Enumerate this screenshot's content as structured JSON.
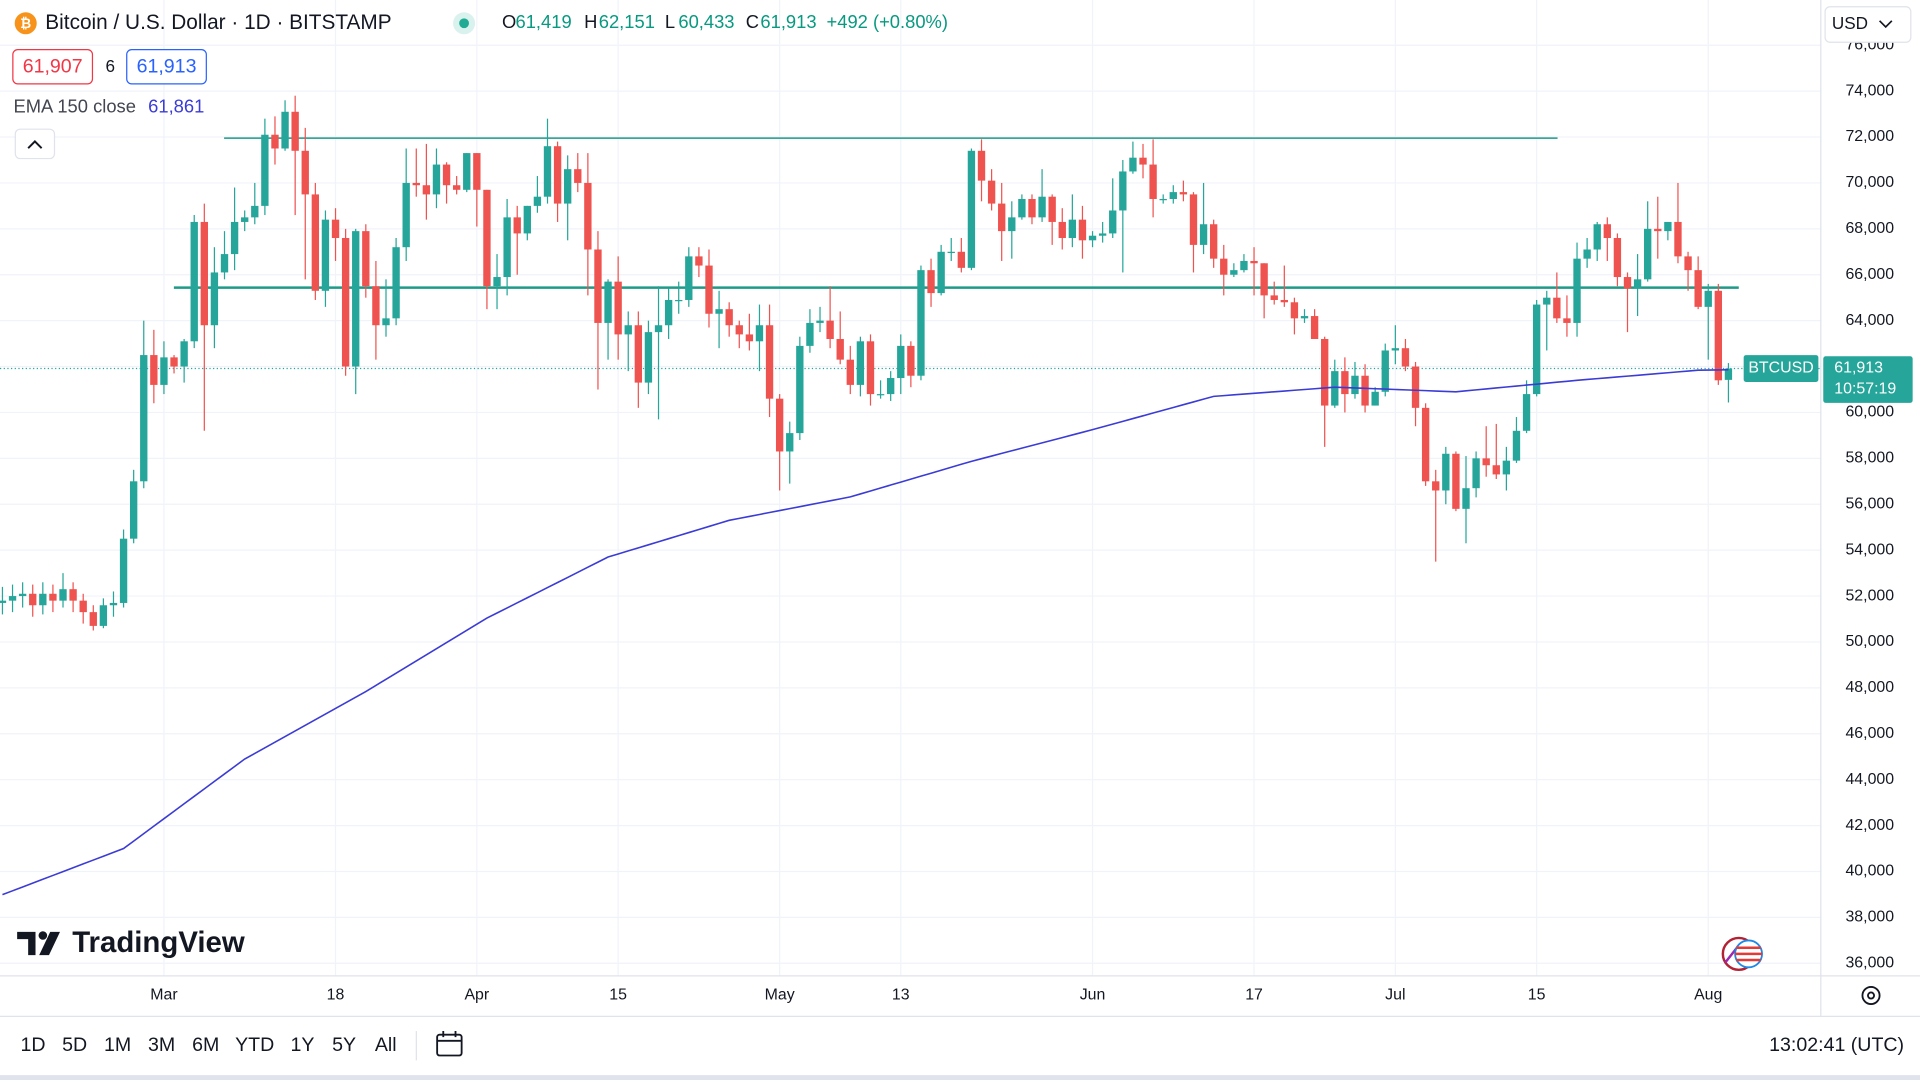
{
  "header": {
    "title": "Bitcoin / U.S. Dollar · 1D · BITSTAMP",
    "ohlc": [
      {
        "label": "O",
        "text": "61,419"
      },
      {
        "label": "H",
        "text": "62,151"
      },
      {
        "label": "L",
        "text": "60,433"
      },
      {
        "label": "C",
        "text": "61,913"
      }
    ],
    "change": "+492 (+0.80%)",
    "bid": "61,907",
    "spread": "6",
    "ask": "61,913",
    "currency": "USD"
  },
  "toolbar": {
    "ranges": [
      "1D",
      "5D",
      "1M",
      "3M",
      "6M",
      "YTD",
      "1Y",
      "5Y",
      "All"
    ],
    "clock": "13:02:41 (UTC)",
    "logo": "TradingView"
  },
  "chart_data": {
    "type": "candlestick",
    "categories": [
      null,
      null,
      null,
      null,
      null,
      null,
      null,
      null,
      null,
      null,
      null,
      null,
      null,
      null,
      null,
      null,
      "Mar",
      null,
      null,
      null,
      null,
      null,
      null,
      null,
      null,
      null,
      null,
      null,
      null,
      null,
      null,
      null,
      null,
      "18",
      null,
      null,
      null,
      null,
      null,
      null,
      null,
      null,
      null,
      null,
      null,
      null,
      null,
      "Apr",
      null,
      null,
      null,
      null,
      null,
      null,
      null,
      null,
      null,
      null,
      null,
      null,
      null,
      "15",
      null,
      null,
      null,
      null,
      null,
      null,
      null,
      null,
      null,
      null,
      null,
      null,
      null,
      null,
      null,
      "May",
      null,
      null,
      null,
      null,
      null,
      null,
      null,
      null,
      null,
      null,
      null,
      "13",
      null,
      null,
      null,
      null,
      null,
      null,
      null,
      null,
      null,
      null,
      null,
      null,
      null,
      null,
      null,
      null,
      null,
      null,
      "Jun",
      null,
      null,
      null,
      null,
      null,
      null,
      null,
      null,
      null,
      null,
      null,
      null,
      null,
      null,
      null,
      "17",
      null,
      null,
      null,
      null,
      null,
      null,
      null,
      null,
      null,
      null,
      null,
      null,
      null,
      "Jul",
      null,
      null,
      null,
      null,
      null,
      null,
      null,
      null,
      null,
      null,
      null,
      null,
      null,
      "15",
      null,
      null,
      null,
      null,
      null,
      null,
      null,
      null,
      null,
      null,
      null,
      null,
      null,
      null,
      null,
      null,
      "Aug",
      null,
      null
    ],
    "open": [
      51700,
      51800,
      52000,
      52100,
      51600,
      52100,
      51800,
      52300,
      51800,
      51300,
      50700,
      51600,
      51700,
      54500,
      57000,
      62500,
      61200,
      62400,
      62000,
      63100,
      68300,
      63800,
      66100,
      66900,
      68300,
      68500,
      69000,
      72100,
      71500,
      73100,
      71400,
      69500,
      65300,
      68400,
      67600,
      62000,
      67900,
      65500,
      63800,
      64100,
      67200,
      70000,
      69900,
      69500,
      70800,
      69900,
      69700,
      71300,
      69700,
      65500,
      65900,
      68500,
      67800,
      69000,
      69400,
      71600,
      69100,
      70600,
      70000,
      67100,
      63900,
      65700,
      63400,
      63800,
      61300,
      63500,
      63800,
      64900,
      64900,
      66800,
      66400,
      64300,
      64500,
      63800,
      63400,
      63100,
      63800,
      60600,
      58300,
      59100,
      62900,
      63900,
      64000,
      63200,
      62300,
      61200,
      63100,
      60800,
      60800,
      61500,
      62900,
      61600,
      66200,
      65200,
      67000,
      67000,
      66300,
      71400,
      70100,
      69100,
      67900,
      68500,
      69300,
      68500,
      69400,
      68300,
      67600,
      68400,
      67500,
      67700,
      67800,
      68800,
      70500,
      71100,
      70800,
      69300,
      69300,
      69600,
      69500,
      67300,
      68200,
      66700,
      66000,
      66200,
      66600,
      66500,
      65100,
      64900,
      64800,
      64100,
      64200,
      63200,
      60300,
      61800,
      60800,
      61600,
      60300,
      60900,
      62700,
      62800,
      62000,
      60200,
      57000,
      56600,
      58200,
      55800,
      56700,
      58000,
      57700,
      57300,
      57900,
      59200,
      60800,
      64700,
      65000,
      64100,
      63900,
      66700,
      67100,
      68200,
      67600,
      65900,
      65400,
      65800,
      68000,
      67900,
      68300,
      66800,
      66200,
      64600,
      65300,
      61419
    ],
    "high": [
      52400,
      52500,
      52600,
      52500,
      52600,
      52500,
      53000,
      52600,
      52100,
      51600,
      51900,
      52200,
      54900,
      57500,
      64000,
      63600,
      63100,
      62500,
      63200,
      68600,
      69100,
      67200,
      67900,
      69800,
      68800,
      70000,
      72800,
      72900,
      73600,
      73800,
      72400,
      70000,
      68800,
      68900,
      68000,
      68000,
      68200,
      66600,
      65800,
      67600,
      71500,
      71500,
      71700,
      71500,
      70900,
      70300,
      71300,
      71300,
      69700,
      66900,
      69300,
      69000,
      69000,
      70300,
      72800,
      71800,
      71200,
      71300,
      71300,
      67900,
      65800,
      66800,
      64400,
      64400,
      64000,
      65500,
      65400,
      65700,
      67200,
      67200,
      67100,
      65300,
      64800,
      64000,
      64300,
      64700,
      64700,
      60800,
      59600,
      63300,
      64500,
      64600,
      65500,
      64400,
      62900,
      63300,
      63400,
      61400,
      61800,
      63400,
      63100,
      66400,
      66700,
      67300,
      67600,
      67600,
      71500,
      71900,
      70600,
      70000,
      69200,
      69500,
      69500,
      70600,
      69500,
      68900,
      69500,
      69000,
      67900,
      68300,
      70200,
      71000,
      71800,
      71700,
      71900,
      69500,
      69900,
      70100,
      69600,
      70000,
      68400,
      67300,
      66500,
      66900,
      67200,
      66500,
      65700,
      66400,
      65000,
      64500,
      64500,
      63300,
      62300,
      62400,
      62200,
      62100,
      61100,
      63000,
      63800,
      63200,
      62200,
      60400,
      57500,
      58500,
      58300,
      58100,
      58300,
      59400,
      59500,
      58500,
      59800,
      61400,
      64900,
      65300,
      66100,
      65100,
      67400,
      67600,
      68300,
      68500,
      67800,
      66100,
      66900,
      69200,
      69400,
      68300,
      70000,
      67000,
      66800,
      65600,
      65600,
      62151
    ],
    "low": [
      51200,
      51300,
      51500,
      51100,
      51200,
      51300,
      51500,
      51300,
      50800,
      50500,
      50600,
      51100,
      51500,
      54300,
      56700,
      60400,
      60800,
      61700,
      61300,
      62800,
      59200,
      62800,
      65800,
      66200,
      67900,
      68200,
      68600,
      70800,
      71400,
      68600,
      65800,
      64900,
      64600,
      66600,
      61600,
      60800,
      65000,
      62300,
      63300,
      63800,
      66600,
      69400,
      68400,
      68900,
      69100,
      69500,
      69600,
      68100,
      64500,
      64500,
      65100,
      66000,
      67500,
      68700,
      69100,
      68300,
      67500,
      69600,
      65100,
      61000,
      62300,
      62300,
      61800,
      60200,
      60800,
      59700,
      63200,
      64300,
      64600,
      65900,
      63700,
      62800,
      63300,
      62800,
      62700,
      61800,
      59800,
      56600,
      56900,
      58800,
      62600,
      63500,
      62800,
      62100,
      60800,
      60700,
      60300,
      60600,
      60500,
      60800,
      61100,
      61400,
      64600,
      65100,
      66600,
      66100,
      66200,
      69200,
      68800,
      66600,
      66700,
      68400,
      68200,
      68300,
      67300,
      67100,
      67200,
      66700,
      67200,
      67400,
      67600,
      66100,
      70400,
      70200,
      68500,
      69100,
      69100,
      69200,
      66100,
      66900,
      66300,
      65100,
      65900,
      66100,
      65100,
      64100,
      64700,
      64600,
      63400,
      63900,
      63200,
      58500,
      60200,
      60000,
      60600,
      60000,
      60300,
      60700,
      62100,
      61800,
      59400,
      56800,
      53500,
      56000,
      55700,
      54300,
      56300,
      57200,
      57100,
      56600,
      57800,
      59100,
      60700,
      62700,
      63900,
      63300,
      63300,
      66300,
      66600,
      66600,
      65500,
      63500,
      64200,
      65700,
      66700,
      67500,
      66500,
      65300,
      64500,
      62300,
      61200,
      60433
    ],
    "close": [
      51800,
      52000,
      52100,
      51600,
      52100,
      51800,
      52300,
      51800,
      51300,
      50700,
      51600,
      51700,
      54500,
      57000,
      62500,
      61200,
      62400,
      62000,
      63100,
      68300,
      63800,
      66100,
      66900,
      68300,
      68500,
      69000,
      72100,
      71500,
      73100,
      71400,
      69500,
      65300,
      68400,
      67600,
      62000,
      67900,
      65500,
      63800,
      64100,
      67200,
      70000,
      69900,
      69500,
      70800,
      69900,
      69700,
      71300,
      69700,
      65500,
      65900,
      68500,
      67800,
      69000,
      69400,
      71600,
      69100,
      70600,
      70000,
      67100,
      63900,
      65700,
      63400,
      63800,
      61300,
      63500,
      63800,
      64900,
      64900,
      66800,
      66400,
      64300,
      64500,
      63800,
      63400,
      63100,
      63800,
      60600,
      58300,
      59100,
      62900,
      63900,
      64000,
      63200,
      62300,
      61200,
      63100,
      60800,
      60800,
      61500,
      62900,
      61600,
      66200,
      65200,
      67000,
      67000,
      66300,
      71400,
      70100,
      69100,
      67900,
      68500,
      69300,
      68500,
      69400,
      68300,
      67600,
      68400,
      67500,
      67700,
      67800,
      68800,
      70500,
      71100,
      70800,
      69300,
      69300,
      69600,
      69500,
      67300,
      68200,
      66700,
      66000,
      66200,
      66600,
      66500,
      65100,
      64900,
      64800,
      64100,
      64200,
      63200,
      60300,
      61800,
      60800,
      61600,
      60300,
      60900,
      62700,
      62800,
      62000,
      60200,
      57000,
      56600,
      58200,
      55800,
      56700,
      58000,
      57700,
      57300,
      57900,
      59200,
      60800,
      64700,
      65000,
      64100,
      63900,
      66700,
      67100,
      68200,
      67600,
      65900,
      65400,
      65800,
      68000,
      67900,
      68300,
      66800,
      66200,
      64600,
      65300,
      61400,
      61913
    ],
    "up_color": "#26a69a",
    "down_color": "#ef5350",
    "series": [
      {
        "name": "EMA 150 close",
        "color": "#3b3bd6",
        "legend_value": "61,861",
        "values": [
          38990,
          39158,
          39325,
          39493,
          39660,
          39828,
          39995,
          40163,
          40330,
          40498,
          40665,
          40833,
          41000,
          41325,
          41650,
          41975,
          42300,
          42625,
          42950,
          43275,
          43600,
          43925,
          44250,
          44575,
          44900,
          45145,
          45390,
          45635,
          45880,
          46125,
          46370,
          46615,
          46860,
          47105,
          47350,
          47595,
          47840,
          48107,
          48373,
          48640,
          48907,
          49173,
          49440,
          49707,
          49973,
          50240,
          50507,
          50773,
          51040,
          51262,
          51483,
          51705,
          51927,
          52148,
          52370,
          52592,
          52813,
          53035,
          53257,
          53478,
          53700,
          53833,
          53967,
          54100,
          54233,
          54367,
          54500,
          54633,
          54767,
          54900,
          55033,
          55167,
          55300,
          55385,
          55470,
          55555,
          55640,
          55725,
          55810,
          55895,
          55980,
          56065,
          56150,
          56235,
          56320,
          56449,
          56578,
          56708,
          56837,
          56966,
          57095,
          57224,
          57353,
          57483,
          57612,
          57741,
          57870,
          57985,
          58100,
          58215,
          58330,
          58445,
          58560,
          58675,
          58790,
          58905,
          59020,
          59135,
          59250,
          59371,
          59492,
          59613,
          59733,
          59854,
          59975,
          60096,
          60217,
          60338,
          60458,
          60579,
          60700,
          60733,
          60767,
          60800,
          60833,
          60867,
          60900,
          60933,
          60967,
          61000,
          61033,
          61067,
          61100,
          61083,
          61067,
          61050,
          61033,
          61017,
          61000,
          60983,
          60967,
          60950,
          60933,
          60917,
          60900,
          60942,
          60983,
          61025,
          61067,
          61108,
          61150,
          61192,
          61233,
          61275,
          61317,
          61358,
          61400,
          61437,
          61473,
          61510,
          61547,
          61583,
          61620,
          61657,
          61693,
          61730,
          61767,
          61803,
          61840,
          61847,
          61854,
          61861
        ]
      }
    ],
    "levels": [
      71950,
      65440
    ],
    "level_color": "#1e9a88",
    "last_price": {
      "symbol": "BTCUSD",
      "price": "61,913",
      "countdown": "10:57:19"
    },
    "ylim": [
      35450,
      77970
    ],
    "yticks": [
      {
        "value": 36000,
        "label": "36,000"
      },
      {
        "value": 38000,
        "label": "38,000"
      },
      {
        "value": 40000,
        "label": "40,000"
      },
      {
        "value": 42000,
        "label": "42,000"
      },
      {
        "value": 44000,
        "label": "44,000"
      },
      {
        "value": 46000,
        "label": "46,000"
      },
      {
        "value": 48000,
        "label": "48,000"
      },
      {
        "value": 50000,
        "label": "50,000"
      },
      {
        "value": 52000,
        "label": "52,000"
      },
      {
        "value": 54000,
        "label": "54,000"
      },
      {
        "value": 56000,
        "label": "56,000"
      },
      {
        "value": 58000,
        "label": "58,000"
      },
      {
        "value": 60000,
        "label": "60,000"
      },
      {
        "value": 62000,
        "label": "62,000"
      },
      {
        "value": 64000,
        "label": "64,000"
      },
      {
        "value": 66000,
        "label": "66,000"
      },
      {
        "value": 68000,
        "label": "68,000"
      },
      {
        "value": 70000,
        "label": "70,000"
      },
      {
        "value": 72000,
        "label": "72,000"
      },
      {
        "value": 74000,
        "label": "74,000"
      },
      {
        "value": 76000,
        "label": "76,000"
      }
    ],
    "grid": true
  }
}
